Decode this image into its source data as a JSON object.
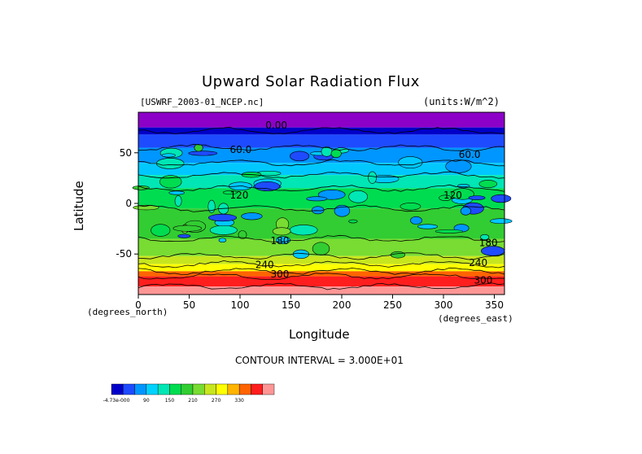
{
  "chart_data": {
    "type": "contour",
    "title": "Upward Solar Radiation Flux",
    "source_label": "[USWRF_2003-01_NCEP.nc]",
    "units_label": "(units:W/m^2)",
    "xlabel": "Longitude",
    "ylabel": "Latitude",
    "x_unit_label": "(degrees_east)",
    "y_unit_label": "(degrees_north)",
    "xlim": [
      0,
      360
    ],
    "ylim": [
      -90,
      90
    ],
    "x_ticks": [
      0,
      50,
      100,
      150,
      200,
      250,
      300,
      350
    ],
    "y_ticks": [
      50,
      0,
      -50
    ],
    "contour_interval_text": "CONTOUR INTERVAL = 3.000E+01",
    "contour_labels": [
      {
        "text": "0.00",
        "lon": 125,
        "lat": 74
      },
      {
        "text": "60.0",
        "lon": 90,
        "lat": 50
      },
      {
        "text": "60.0",
        "lon": 315,
        "lat": 45
      },
      {
        "text": "120",
        "lon": 90,
        "lat": 5
      },
      {
        "text": "120",
        "lon": 300,
        "lat": 5
      },
      {
        "text": "180",
        "lon": 130,
        "lat": -40
      },
      {
        "text": "180",
        "lon": 335,
        "lat": -42
      },
      {
        "text": "240",
        "lon": 115,
        "lat": -64
      },
      {
        "text": "240",
        "lon": 325,
        "lat": -62
      },
      {
        "text": "300",
        "lon": 130,
        "lat": -73
      },
      {
        "text": "300",
        "lon": 330,
        "lat": -79
      }
    ],
    "colorbar": {
      "tick_labels": [
        "-4.73e-000",
        "90",
        "150",
        "210",
        "270",
        "330"
      ],
      "colors": [
        "#0000c8",
        "#1e4bff",
        "#0096ff",
        "#00d2ff",
        "#00e6b4",
        "#00dc50",
        "#32cd32",
        "#78dc32",
        "#c8e61e",
        "#ffff00",
        "#ffb400",
        "#ff6400",
        "#ff1e1e",
        "#ff9696"
      ]
    }
  }
}
